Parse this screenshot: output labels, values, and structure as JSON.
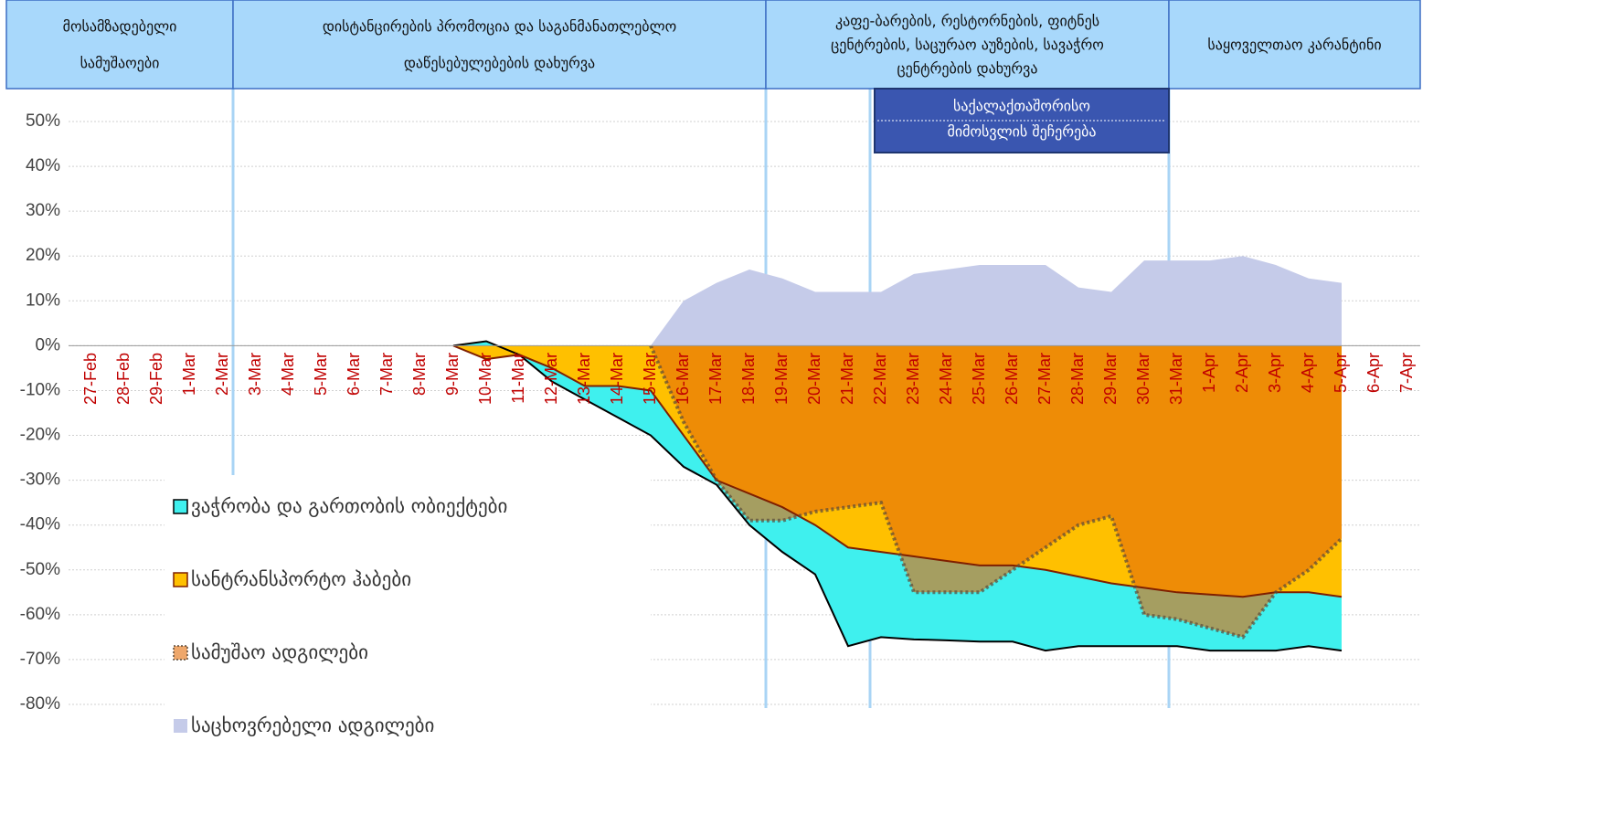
{
  "chart_data": {
    "type": "area",
    "phases": [
      {
        "lines": [
          "მოსამზადებელი",
          "სამუშაოები"
        ]
      },
      {
        "lines": [
          "დისტანცირების პრომოცია და საგანმანათლებლო",
          "დაწესებულებების დახურვა"
        ]
      },
      {
        "lines": [
          "კაფე-ბარების, რესტორნების, ფიტნეს",
          "ცენტრების, საცურაო აუზების,  სავაჭრო",
          "ცენტრების დახურვა"
        ]
      },
      {
        "lines": [
          "საყოველთაო კარანტინი"
        ]
      }
    ],
    "annotation": {
      "lines": [
        "საქალაქთაშორისო",
        "მიმოსვლის შეჩერება"
      ]
    },
    "categories": [
      "27-Feb",
      "28-Feb",
      "29-Feb",
      "1-Mar",
      "2-Mar",
      "3-Mar",
      "4-Mar",
      "5-Mar",
      "6-Mar",
      "7-Mar",
      "8-Mar",
      "9-Mar",
      "10-Mar",
      "11-Mar",
      "12-Mar",
      "13-Mar",
      "14-Mar",
      "15-Mar",
      "16-Mar",
      "17-Mar",
      "18-Mar",
      "19-Mar",
      "20-Mar",
      "21-Mar",
      "22-Mar",
      "23-Mar",
      "24-Mar",
      "25-Mar",
      "26-Mar",
      "27-Mar",
      "28-Mar",
      "29-Mar",
      "30-Mar",
      "31-Mar",
      "1-Apr",
      "2-Apr",
      "3-Apr",
      "4-Apr",
      "5-Apr",
      "6-Apr",
      "7-Apr"
    ],
    "series": [
      {
        "name": "ვაჭრობა და გართობის ობიექტები",
        "color": "#3ff0ee",
        "line_color": "#000000",
        "values": [
          null,
          null,
          null,
          null,
          null,
          null,
          null,
          null,
          null,
          null,
          null,
          0,
          1,
          -2,
          -8,
          -12,
          -16,
          -20,
          -27,
          -31,
          -40,
          -46,
          -51,
          -67,
          -65,
          -65.5,
          -65.7,
          -66,
          -66,
          -68,
          -67,
          -67,
          -67,
          -67,
          -68,
          -68,
          -68,
          -67,
          -68,
          null,
          null
        ]
      },
      {
        "name": "სანტრანსპორტო ჰაბები",
        "color": "#ffc000",
        "line_color": "#7f1f00",
        "values": [
          null,
          null,
          null,
          null,
          null,
          null,
          null,
          null,
          null,
          null,
          null,
          0,
          -3,
          -2,
          -5,
          -9,
          -9,
          -10,
          -20,
          -30,
          -33,
          -36,
          -40,
          -45,
          -46,
          -47,
          -48,
          -49,
          -49,
          -50,
          -51.5,
          -53,
          -54,
          -55,
          -55.5,
          -56,
          -55,
          -55,
          -56,
          null,
          null
        ]
      },
      {
        "name": "სამუშაო ადგილები",
        "color": "#e36c09",
        "line_color": "#5a4a3a",
        "values": [
          null,
          null,
          null,
          null,
          null,
          null,
          null,
          null,
          null,
          null,
          null,
          null,
          null,
          null,
          null,
          null,
          null,
          0,
          -17,
          -30,
          -39,
          -39,
          -37,
          -36,
          -35,
          -55,
          -55,
          -55,
          -50,
          -45,
          -40,
          -38,
          -60,
          -61,
          -63,
          -65,
          -55,
          -50,
          -43,
          null,
          null
        ]
      },
      {
        "name": "საცხოვრებელი ადგილები",
        "color": "#c5cbe9",
        "values": [
          null,
          null,
          null,
          null,
          null,
          null,
          null,
          null,
          null,
          null,
          null,
          null,
          null,
          null,
          null,
          null,
          null,
          0,
          10,
          14,
          17,
          15,
          12,
          12,
          12,
          16,
          17,
          18,
          18,
          18,
          13,
          12,
          19,
          19,
          19,
          20,
          18,
          15,
          14,
          null,
          null
        ]
      }
    ],
    "ylim": [
      -80,
      50
    ],
    "yticks": [
      {
        "value": 50,
        "label": "50%"
      },
      {
        "value": 40,
        "label": "40%"
      },
      {
        "value": 30,
        "label": "30%"
      },
      {
        "value": 20,
        "label": "20%"
      },
      {
        "value": 10,
        "label": "10%"
      },
      {
        "value": 0,
        "label": "0%"
      },
      {
        "value": -10,
        "label": "-10%"
      },
      {
        "value": -20,
        "label": "-20%"
      },
      {
        "value": -30,
        "label": "-30%"
      },
      {
        "value": -40,
        "label": "-40%"
      },
      {
        "value": -50,
        "label": "-50%"
      },
      {
        "value": -60,
        "label": "-60%"
      },
      {
        "value": -70,
        "label": "-70%"
      },
      {
        "value": -80,
        "label": "-80%"
      }
    ],
    "grid": true
  }
}
